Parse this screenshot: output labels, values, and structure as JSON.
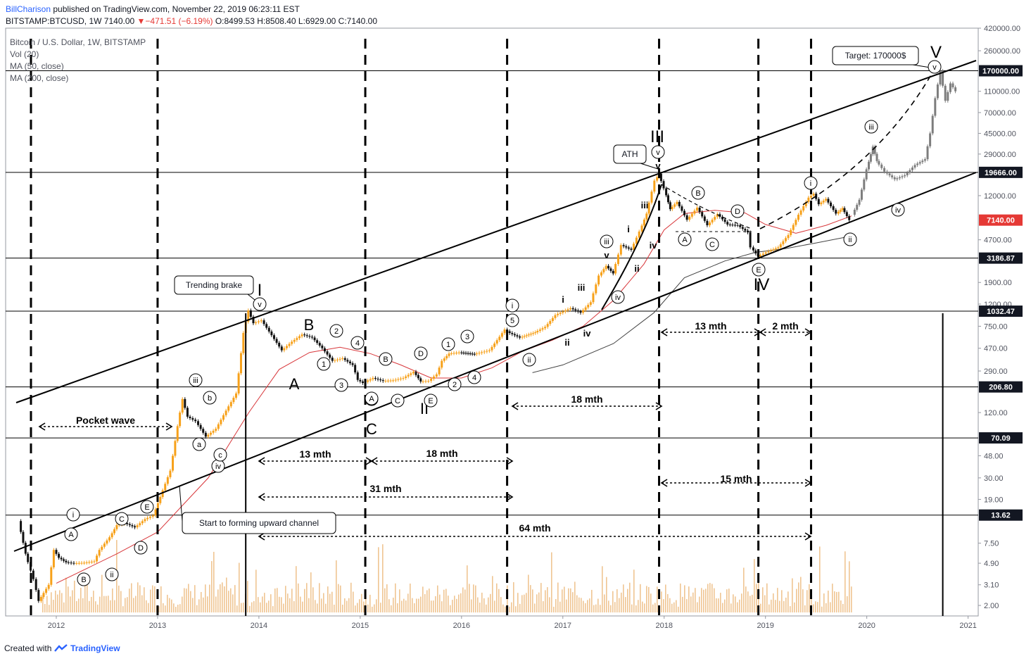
{
  "header": {
    "author": "BillCharison",
    "published_text": "published on TradingView.com, November 22, 2019 06:23:11 EST",
    "symbol": "BITSTAMP:BTCUSD, 1W",
    "last": "7140.00",
    "change": "−471.51 (−6.19%)",
    "ohlc": "O:8499.53 H:8508.40 L:6929.00 C:7140.00"
  },
  "legend": {
    "title": "Bitcoin / U.S. Dollar, 1W, BITSTAMP",
    "vol": "Vol (20)",
    "ma50": "MA (50, close)",
    "ma200": "MA (200, close)"
  },
  "footer": {
    "created_with": "Created with",
    "brand": "TradingView"
  },
  "colors": {
    "candle": "#f7a11a",
    "candle_down": "#111111",
    "projection": "#7d7d7d",
    "volume": "#e9b26e",
    "ma50": "#d8373b",
    "ma200": "#444444",
    "badge_dark": "#131722",
    "badge_red": "#e53935",
    "accent": "#2962ff"
  },
  "chart_data": {
    "type": "line",
    "title": "Bitcoin / U.S. Dollar, 1W, BITSTAMP",
    "scale": "log",
    "xlim": [
      2011.5,
      2021.1
    ],
    "ylim": [
      1.6,
      420000
    ],
    "x_ticks": [
      "2012",
      "2013",
      "2014",
      "2015",
      "2016",
      "2017",
      "2018",
      "2019",
      "2020",
      "2021"
    ],
    "x_tick_values": [
      2012,
      2013,
      2014,
      2015,
      2016,
      2017,
      2018,
      2019,
      2020,
      2021
    ],
    "y_ticks": [
      "420000.00",
      "260000.00",
      "110000.00",
      "70000.00",
      "45000.00",
      "29000.00",
      "12000.00",
      "4700.00",
      "1900.00",
      "1200.00",
      "750.00",
      "470.00",
      "290.00",
      "120.00",
      "48.00",
      "30.00",
      "19.00",
      "7.50",
      "4.90",
      "3.10",
      "2.00"
    ],
    "y_tick_values": [
      420000,
      260000,
      110000,
      70000,
      45000,
      29000,
      12000,
      4700,
      1900,
      1200,
      750,
      470,
      290,
      120,
      48,
      30,
      19,
      7.5,
      4.9,
      3.1,
      2.0
    ],
    "price_series": [
      {
        "name": "BTCUSD",
        "points": [
          [
            2011.65,
            12
          ],
          [
            2011.72,
            6
          ],
          [
            2011.8,
            3.5
          ],
          [
            2011.85,
            2.2
          ],
          [
            2011.95,
            3.1
          ],
          [
            2012.0,
            6.5
          ],
          [
            2012.05,
            5.5
          ],
          [
            2012.12,
            5.0
          ],
          [
            2012.2,
            4.9
          ],
          [
            2012.3,
            4.95
          ],
          [
            2012.4,
            5.1
          ],
          [
            2012.45,
            6.5
          ],
          [
            2012.55,
            8.5
          ],
          [
            2012.62,
            11
          ],
          [
            2012.7,
            11.5
          ],
          [
            2012.8,
            10.5
          ],
          [
            2012.9,
            12.5
          ],
          [
            2012.98,
            13.5
          ],
          [
            2013.05,
            20
          ],
          [
            2013.15,
            35
          ],
          [
            2013.22,
            90
          ],
          [
            2013.27,
            160
          ],
          [
            2013.32,
            110
          ],
          [
            2013.4,
            100
          ],
          [
            2013.5,
            72
          ],
          [
            2013.6,
            85
          ],
          [
            2013.7,
            125
          ],
          [
            2013.8,
            180
          ],
          [
            2013.87,
            650
          ],
          [
            2013.92,
            1050
          ],
          [
            2013.97,
            800
          ],
          [
            2014.05,
            850
          ],
          [
            2014.15,
            620
          ],
          [
            2014.25,
            450
          ],
          [
            2014.35,
            540
          ],
          [
            2014.45,
            630
          ],
          [
            2014.55,
            590
          ],
          [
            2014.65,
            470
          ],
          [
            2014.75,
            360
          ],
          [
            2014.85,
            380
          ],
          [
            2014.95,
            330
          ],
          [
            2015.0,
            240
          ],
          [
            2015.05,
            225
          ],
          [
            2015.15,
            250
          ],
          [
            2015.25,
            235
          ],
          [
            2015.35,
            238
          ],
          [
            2015.45,
            250
          ],
          [
            2015.55,
            285
          ],
          [
            2015.62,
            232
          ],
          [
            2015.7,
            235
          ],
          [
            2015.78,
            270
          ],
          [
            2015.83,
            360
          ],
          [
            2015.9,
            420
          ],
          [
            2016.0,
            430
          ],
          [
            2016.15,
            415
          ],
          [
            2016.3,
            450
          ],
          [
            2016.4,
            600
          ],
          [
            2016.45,
            700
          ],
          [
            2016.5,
            650
          ],
          [
            2016.6,
            590
          ],
          [
            2016.75,
            660
          ],
          [
            2016.85,
            740
          ],
          [
            2016.95,
            950
          ],
          [
            2017.0,
            1000
          ],
          [
            2017.1,
            1100
          ],
          [
            2017.2,
            1000
          ],
          [
            2017.3,
            1250
          ],
          [
            2017.38,
            2200
          ],
          [
            2017.45,
            2700
          ],
          [
            2017.52,
            2300
          ],
          [
            2017.6,
            4200
          ],
          [
            2017.7,
            3800
          ],
          [
            2017.78,
            5600
          ],
          [
            2017.85,
            8200
          ],
          [
            2017.93,
            16500
          ],
          [
            2017.97,
            19100
          ],
          [
            2018.02,
            14000
          ],
          [
            2018.08,
            9000
          ],
          [
            2018.15,
            10500
          ],
          [
            2018.25,
            7200
          ],
          [
            2018.35,
            9300
          ],
          [
            2018.45,
            6400
          ],
          [
            2018.55,
            8100
          ],
          [
            2018.65,
            6500
          ],
          [
            2018.75,
            6400
          ],
          [
            2018.85,
            5500
          ],
          [
            2018.88,
            4000
          ],
          [
            2018.95,
            3300
          ],
          [
            2019.03,
            3600
          ],
          [
            2019.15,
            4000
          ],
          [
            2019.25,
            5200
          ],
          [
            2019.35,
            8000
          ],
          [
            2019.45,
            11500
          ],
          [
            2019.5,
            12500
          ],
          [
            2019.55,
            10000
          ],
          [
            2019.62,
            11200
          ],
          [
            2019.72,
            8200
          ],
          [
            2019.78,
            9200
          ],
          [
            2019.85,
            7140
          ]
        ]
      },
      {
        "name": "projection",
        "points": [
          [
            2019.88,
            8000
          ],
          [
            2019.95,
            11000
          ],
          [
            2020.02,
            21000
          ],
          [
            2020.08,
            34000
          ],
          [
            2020.12,
            25000
          ],
          [
            2020.2,
            20000
          ],
          [
            2020.3,
            17000
          ],
          [
            2020.4,
            18500
          ],
          [
            2020.5,
            23000
          ],
          [
            2020.6,
            26000
          ],
          [
            2020.65,
            45000
          ],
          [
            2020.7,
            95000
          ],
          [
            2020.75,
            170000
          ],
          [
            2020.8,
            90000
          ],
          [
            2020.85,
            130000
          ],
          [
            2020.9,
            110000
          ]
        ]
      }
    ],
    "ma_series": [
      {
        "name": "MA (50, close)",
        "points": [
          [
            2012.0,
            3.2
          ],
          [
            2012.6,
            6
          ],
          [
            2013.0,
            9.5
          ],
          [
            2013.5,
            30
          ],
          [
            2013.9,
            120
          ],
          [
            2014.2,
            300
          ],
          [
            2014.5,
            430
          ],
          [
            2014.8,
            480
          ],
          [
            2015.1,
            420
          ],
          [
            2015.4,
            330
          ],
          [
            2015.7,
            250
          ],
          [
            2016.0,
            250
          ],
          [
            2016.3,
            310
          ],
          [
            2016.6,
            440
          ],
          [
            2016.9,
            560
          ],
          [
            2017.2,
            750
          ],
          [
            2017.5,
            1300
          ],
          [
            2017.8,
            2800
          ],
          [
            2018.0,
            5800
          ],
          [
            2018.2,
            8200
          ],
          [
            2018.5,
            8800
          ],
          [
            2018.8,
            8300
          ],
          [
            2019.0,
            6500
          ],
          [
            2019.3,
            5400
          ],
          [
            2019.6,
            6400
          ],
          [
            2019.85,
            7800
          ]
        ]
      },
      {
        "name": "MA (200, close)",
        "points": [
          [
            2016.7,
            280
          ],
          [
            2017.0,
            330
          ],
          [
            2017.5,
            520
          ],
          [
            2017.9,
            1000
          ],
          [
            2018.2,
            2100
          ],
          [
            2018.6,
            3000
          ],
          [
            2018.9,
            3600
          ],
          [
            2019.2,
            3900
          ],
          [
            2019.5,
            4400
          ],
          [
            2019.85,
            5100
          ]
        ]
      }
    ],
    "volume_bars": "shown (Vol 20)",
    "horizontal_levels": [
      170000,
      19666,
      3186.87,
      1032.47,
      206.8,
      70.09,
      13.62
    ],
    "price_badges": [
      "170000.00",
      "19666.00",
      "7140.00",
      "3186.87",
      "1032.47",
      "206.80",
      "70.09",
      "13.62"
    ],
    "vertical_lines": [
      2011.75,
      2013.0,
      2013.87,
      2015.05,
      2016.45,
      2017.95,
      2018.93,
      2019.45,
      2020.75
    ],
    "measurements": [
      "Pocket wave",
      "13 mth",
      "18 mth",
      "31 mth",
      "64 mth",
      "18 mth",
      "13 mth",
      "2 mth",
      "15 mth"
    ],
    "callouts": [
      "Trending brake",
      "ATH",
      "Target: 170000$",
      "Start to forming upward channel"
    ],
    "wave_labels": [
      "I",
      "II",
      "III",
      "IV",
      "V",
      "A",
      "B",
      "C",
      "i",
      "ii",
      "iii",
      "iv",
      "v",
      "1",
      "2",
      "3",
      "4",
      "5",
      "a",
      "b",
      "c",
      "A",
      "B",
      "C",
      "D",
      "E"
    ]
  }
}
